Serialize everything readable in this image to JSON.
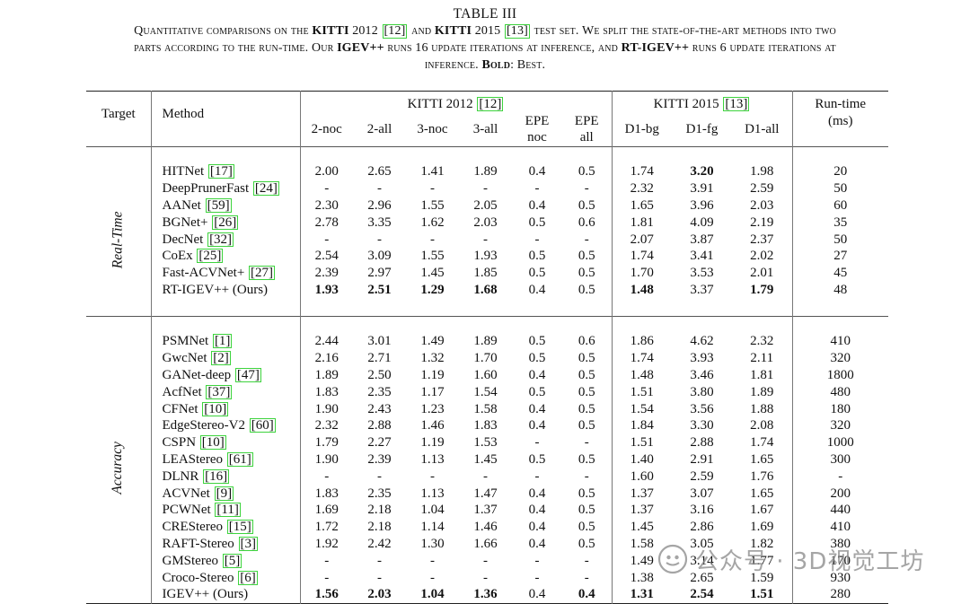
{
  "caption": {
    "label": "TABLE III",
    "line1": [
      "Quantitative comparisons on the ",
      "KITTI",
      " 2012 ",
      "[12]",
      " and ",
      "KITTI",
      " 2015 ",
      "[13]",
      " test set. We split the state-of-the-art methods into two"
    ],
    "line2": [
      "parts according to the run-time. Our ",
      "IGEV++",
      " runs 16 update iterations at inference, and ",
      "RT-IGEV++",
      " runs 6 update iterations at"
    ],
    "line3": [
      "inference. ",
      "Bold",
      ": Best."
    ]
  },
  "table": {
    "headers": {
      "target": "Target",
      "method": "Method",
      "kitti2012": "KITTI 2012",
      "kitti2012_ref": "[12]",
      "kitti2015": "KITTI 2015",
      "kitti2015_ref": "[13]",
      "runtime_line1": "Run-time",
      "runtime_line2": "(ms)",
      "sub_2012": [
        "2-noc",
        "2-all",
        "3-noc",
        "3-all"
      ],
      "epe_noc": [
        "EPE",
        "noc"
      ],
      "epe_all": [
        "EPE",
        "all"
      ],
      "sub_2015": [
        "D1-bg",
        "D1-fg",
        "D1-all"
      ]
    },
    "groups": [
      {
        "label": "Real-Time",
        "rows": [
          {
            "method": "HITNet",
            "ref": "[17]",
            "values": [
              "2.00",
              "2.65",
              "1.41",
              "1.89",
              "0.4",
              "0.5",
              "1.74",
              "3.20",
              "1.98",
              "20"
            ],
            "bold": [
              7
            ]
          },
          {
            "method": "DeepPrunerFast",
            "ref": "[24]",
            "values": [
              "-",
              "-",
              "-",
              "-",
              "-",
              "-",
              "2.32",
              "3.91",
              "2.59",
              "50"
            ],
            "bold": []
          },
          {
            "method": "AANet",
            "ref": "[59]",
            "values": [
              "2.30",
              "2.96",
              "1.55",
              "2.05",
              "0.4",
              "0.5",
              "1.65",
              "3.96",
              "2.03",
              "60"
            ],
            "bold": []
          },
          {
            "method": "BGNet+",
            "ref": "[26]",
            "values": [
              "2.78",
              "3.35",
              "1.62",
              "2.03",
              "0.5",
              "0.6",
              "1.81",
              "4.09",
              "2.19",
              "35"
            ],
            "bold": []
          },
          {
            "method": "DecNet",
            "ref": "[32]",
            "values": [
              "-",
              "-",
              "-",
              "-",
              "-",
              "-",
              "2.07",
              "3.87",
              "2.37",
              "50"
            ],
            "bold": []
          },
          {
            "method": "CoEx",
            "ref": "[25]",
            "values": [
              "2.54",
              "3.09",
              "1.55",
              "1.93",
              "0.5",
              "0.5",
              "1.74",
              "3.41",
              "2.02",
              "27"
            ],
            "bold": []
          },
          {
            "method": "Fast-ACVNet+",
            "ref": "[27]",
            "values": [
              "2.39",
              "2.97",
              "1.45",
              "1.85",
              "0.5",
              "0.5",
              "1.70",
              "3.53",
              "2.01",
              "45"
            ],
            "bold": []
          },
          {
            "method": "RT-IGEV++ (Ours)",
            "ref": "",
            "values": [
              "1.93",
              "2.51",
              "1.29",
              "1.68",
              "0.4",
              "0.5",
              "1.48",
              "3.37",
              "1.79",
              "48"
            ],
            "bold": [
              0,
              1,
              2,
              3,
              6,
              8
            ]
          }
        ]
      },
      {
        "label": "Accuracy",
        "rows": [
          {
            "method": "PSMNet",
            "ref": "[1]",
            "values": [
              "2.44",
              "3.01",
              "1.49",
              "1.89",
              "0.5",
              "0.6",
              "1.86",
              "4.62",
              "2.32",
              "410"
            ],
            "bold": []
          },
          {
            "method": "GwcNet",
            "ref": "[2]",
            "values": [
              "2.16",
              "2.71",
              "1.32",
              "1.70",
              "0.5",
              "0.5",
              "1.74",
              "3.93",
              "2.11",
              "320"
            ],
            "bold": []
          },
          {
            "method": "GANet-deep",
            "ref": "[47]",
            "values": [
              "1.89",
              "2.50",
              "1.19",
              "1.60",
              "0.4",
              "0.5",
              "1.48",
              "3.46",
              "1.81",
              "1800"
            ],
            "bold": []
          },
          {
            "method": "AcfNet",
            "ref": "[37]",
            "values": [
              "1.83",
              "2.35",
              "1.17",
              "1.54",
              "0.5",
              "0.5",
              "1.51",
              "3.80",
              "1.89",
              "480"
            ],
            "bold": []
          },
          {
            "method": "CFNet",
            "ref": "[10]",
            "values": [
              "1.90",
              "2.43",
              "1.23",
              "1.58",
              "0.4",
              "0.5",
              "1.54",
              "3.56",
              "1.88",
              "180"
            ],
            "bold": []
          },
          {
            "method": "EdgeStereo-V2",
            "ref": "[60]",
            "values": [
              "2.32",
              "2.88",
              "1.46",
              "1.83",
              "0.4",
              "0.5",
              "1.84",
              "3.30",
              "2.08",
              "320"
            ],
            "bold": []
          },
          {
            "method": "CSPN",
            "ref": "[10]",
            "values": [
              "1.79",
              "2.27",
              "1.19",
              "1.53",
              "-",
              "-",
              "1.51",
              "2.88",
              "1.74",
              "1000"
            ],
            "bold": []
          },
          {
            "method": "LEAStereo",
            "ref": "[61]",
            "values": [
              "1.90",
              "2.39",
              "1.13",
              "1.45",
              "0.5",
              "0.5",
              "1.40",
              "2.91",
              "1.65",
              "300"
            ],
            "bold": []
          },
          {
            "method": "DLNR",
            "ref": "[16]",
            "values": [
              "-",
              "-",
              "-",
              "-",
              "-",
              "-",
              "1.60",
              "2.59",
              "1.76",
              "-"
            ],
            "bold": []
          },
          {
            "method": "ACVNet",
            "ref": "[9]",
            "values": [
              "1.83",
              "2.35",
              "1.13",
              "1.47",
              "0.4",
              "0.5",
              "1.37",
              "3.07",
              "1.65",
              "200"
            ],
            "bold": []
          },
          {
            "method": "PCWNet",
            "ref": "[11]",
            "values": [
              "1.69",
              "2.18",
              "1.04",
              "1.37",
              "0.4",
              "0.5",
              "1.37",
              "3.16",
              "1.67",
              "440"
            ],
            "bold": []
          },
          {
            "method": "CREStereo",
            "ref": "[15]",
            "values": [
              "1.72",
              "2.18",
              "1.14",
              "1.46",
              "0.4",
              "0.5",
              "1.45",
              "2.86",
              "1.69",
              "410"
            ],
            "bold": []
          },
          {
            "method": "RAFT-Stereo",
            "ref": "[3]",
            "values": [
              "1.92",
              "2.42",
              "1.30",
              "1.66",
              "0.4",
              "0.5",
              "1.58",
              "3.05",
              "1.82",
              "380"
            ],
            "bold": []
          },
          {
            "method": "GMStereo",
            "ref": "[5]",
            "values": [
              "-",
              "-",
              "-",
              "-",
              "-",
              "-",
              "1.49",
              "3.14",
              "1.77",
              "170"
            ],
            "bold": []
          },
          {
            "method": "Croco-Stereo",
            "ref": "[6]",
            "values": [
              "-",
              "-",
              "-",
              "-",
              "-",
              "-",
              "1.38",
              "2.65",
              "1.59",
              "930"
            ],
            "bold": []
          },
          {
            "method": "IGEV++ (Ours)",
            "ref": "",
            "values": [
              "1.56",
              "2.03",
              "1.04",
              "1.36",
              "0.4",
              "0.4",
              "1.31",
              "2.54",
              "1.51",
              "280"
            ],
            "bold": [
              0,
              1,
              2,
              3,
              5,
              6,
              7,
              8
            ]
          }
        ]
      }
    ]
  },
  "watermark": {
    "text": "公众号 · 3D视觉工坊"
  },
  "colors": {
    "ref_box": "#3dd33d",
    "text": "#111111"
  }
}
